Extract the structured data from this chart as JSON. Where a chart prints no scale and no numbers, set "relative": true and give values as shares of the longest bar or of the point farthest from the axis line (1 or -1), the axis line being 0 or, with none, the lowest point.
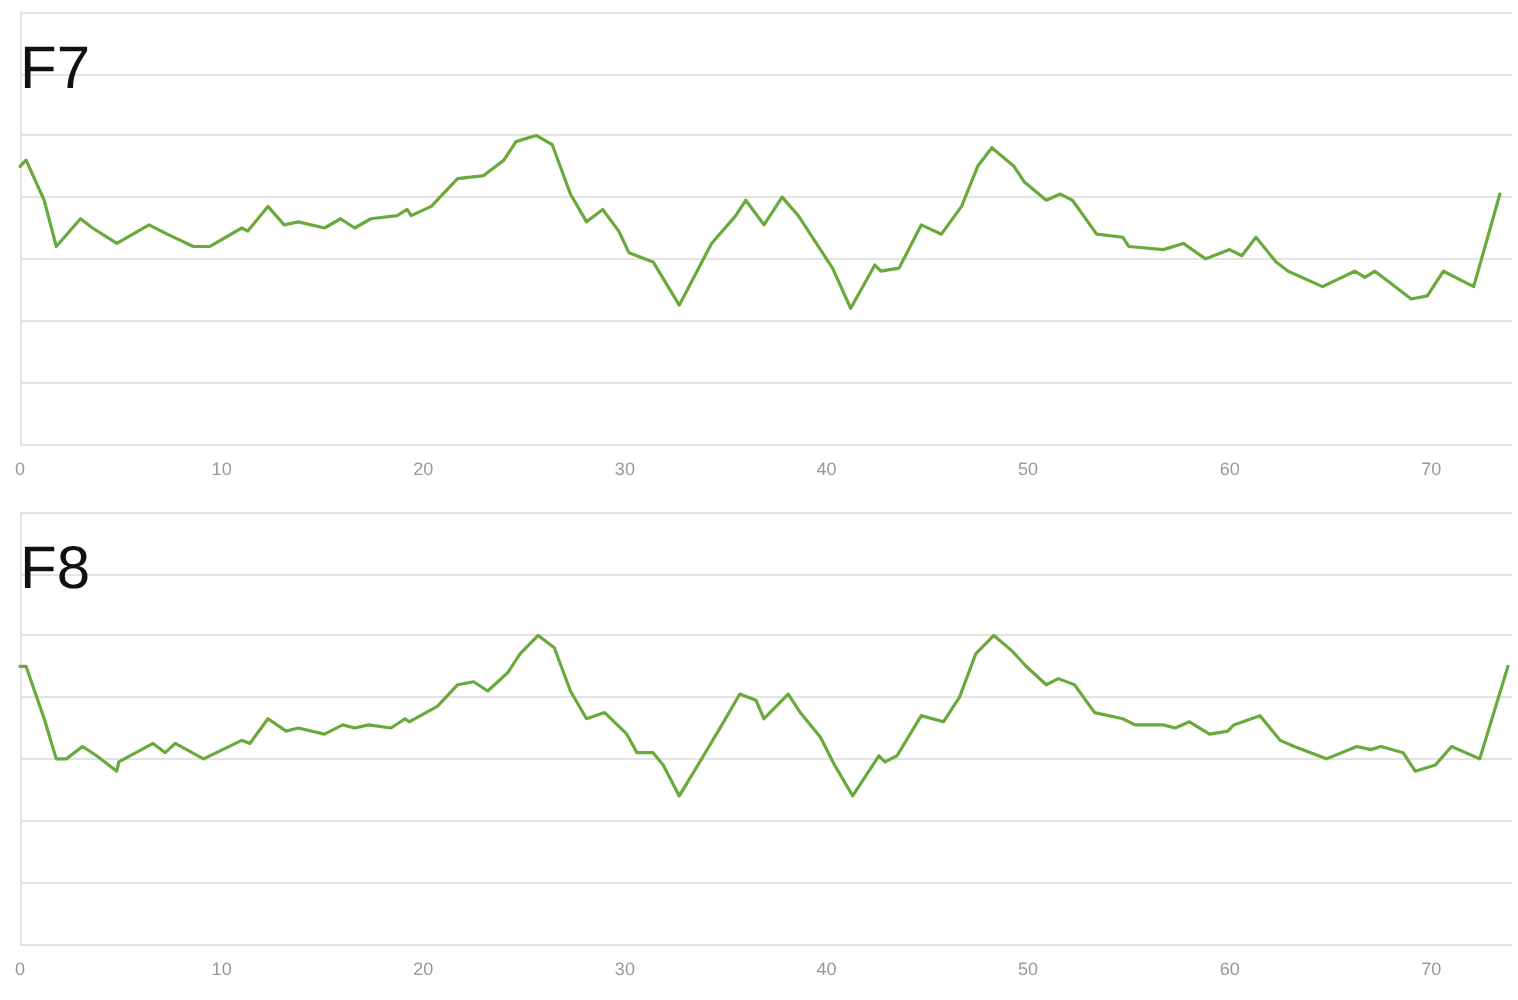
{
  "chart_data": [
    {
      "type": "line",
      "title": "F7",
      "relative": true,
      "xlim": [
        0,
        74
      ],
      "xticks": [
        0,
        10,
        20,
        30,
        40,
        50,
        60,
        70
      ],
      "grid": "y",
      "tick_labels": "x",
      "marker": "none",
      "line_style": "solid",
      "series": [
        {
          "color": "#6aa93c",
          "x": [
            0.0,
            0.3,
            1.2,
            1.8,
            3.0,
            3.6,
            4.8,
            6.4,
            7.3,
            8.6,
            9.4,
            11.0,
            11.3,
            12.3,
            13.1,
            13.8,
            15.1,
            15.9,
            16.6,
            17.4,
            18.7,
            19.2,
            19.4,
            20.4,
            21.7,
            23.0,
            24.0,
            24.6,
            25.6,
            26.4,
            27.3,
            28.1,
            28.9,
            29.7,
            30.2,
            31.4,
            32.7,
            34.3,
            35.5,
            36.0,
            36.9,
            37.8,
            38.6,
            40.3,
            41.2,
            42.4,
            42.7,
            43.6,
            44.7,
            45.7,
            46.7,
            47.5,
            48.2,
            49.3,
            49.8,
            50.9,
            51.6,
            52.2,
            53.4,
            54.7,
            55.0,
            56.7,
            57.7,
            58.8,
            60.0,
            60.6,
            61.3,
            62.3,
            62.9,
            64.6,
            66.2,
            66.7,
            67.2,
            68.0,
            69.0,
            69.8,
            70.6,
            72.1,
            73.4
          ],
          "values": [
            0.9,
            0.92,
            0.79,
            0.64,
            0.73,
            0.7,
            0.65,
            0.71,
            0.68,
            0.64,
            0.64,
            0.7,
            0.69,
            0.77,
            0.71,
            0.72,
            0.7,
            0.73,
            0.7,
            0.73,
            0.74,
            0.76,
            0.74,
            0.77,
            0.86,
            0.87,
            0.92,
            0.98,
            1.0,
            0.97,
            0.81,
            0.72,
            0.76,
            0.69,
            0.62,
            0.59,
            0.45,
            0.65,
            0.74,
            0.79,
            0.71,
            0.8,
            0.74,
            0.57,
            0.44,
            0.58,
            0.56,
            0.57,
            0.71,
            0.68,
            0.77,
            0.9,
            0.96,
            0.9,
            0.85,
            0.79,
            0.81,
            0.79,
            0.68,
            0.67,
            0.64,
            0.63,
            0.65,
            0.6,
            0.63,
            0.61,
            0.67,
            0.59,
            0.56,
            0.51,
            0.56,
            0.54,
            0.56,
            0.52,
            0.47,
            0.48,
            0.56,
            0.51,
            0.81
          ]
        }
      ]
    },
    {
      "type": "line",
      "title": "F8",
      "relative": true,
      "xlim": [
        0,
        74
      ],
      "xticks": [
        0,
        10,
        20,
        30,
        40,
        50,
        60,
        70
      ],
      "grid": "y",
      "tick_labels": "x",
      "marker": "none",
      "line_style": "solid",
      "series": [
        {
          "color": "#6aa93c",
          "x": [
            0.0,
            0.3,
            1.2,
            1.8,
            2.3,
            3.1,
            3.8,
            4.8,
            4.9,
            6.6,
            7.2,
            7.7,
            9.1,
            11.0,
            11.4,
            12.3,
            13.2,
            13.8,
            15.1,
            16.0,
            16.6,
            17.3,
            18.4,
            19.1,
            19.3,
            20.7,
            21.7,
            22.5,
            23.2,
            24.2,
            24.8,
            25.7,
            26.5,
            27.3,
            28.1,
            29.0,
            30.1,
            30.6,
            31.4,
            31.9,
            32.7,
            33.9,
            34.9,
            35.7,
            36.5,
            36.9,
            38.1,
            38.7,
            39.7,
            40.4,
            41.3,
            42.6,
            42.9,
            43.5,
            44.7,
            45.8,
            46.6,
            47.4,
            48.3,
            49.2,
            49.9,
            50.9,
            51.5,
            52.3,
            53.3,
            54.7,
            55.3,
            56.7,
            57.3,
            58.0,
            59.0,
            59.9,
            60.2,
            61.5,
            62.5,
            63.2,
            64.8,
            66.3,
            67.0,
            67.5,
            68.6,
            69.2,
            70.2,
            71.0,
            72.4,
            73.8
          ],
          "values": [
            0.9,
            0.9,
            0.73,
            0.6,
            0.6,
            0.64,
            0.61,
            0.56,
            0.59,
            0.65,
            0.62,
            0.65,
            0.6,
            0.66,
            0.65,
            0.73,
            0.69,
            0.7,
            0.68,
            0.71,
            0.7,
            0.71,
            0.7,
            0.73,
            0.72,
            0.77,
            0.84,
            0.85,
            0.82,
            0.88,
            0.94,
            1.0,
            0.96,
            0.82,
            0.73,
            0.75,
            0.68,
            0.62,
            0.62,
            0.58,
            0.48,
            0.61,
            0.72,
            0.81,
            0.79,
            0.73,
            0.81,
            0.75,
            0.67,
            0.58,
            0.48,
            0.61,
            0.59,
            0.61,
            0.74,
            0.72,
            0.8,
            0.94,
            1.0,
            0.95,
            0.9,
            0.84,
            0.86,
            0.84,
            0.75,
            0.73,
            0.71,
            0.71,
            0.7,
            0.72,
            0.68,
            0.69,
            0.71,
            0.74,
            0.66,
            0.64,
            0.6,
            0.64,
            0.63,
            0.64,
            0.62,
            0.56,
            0.58,
            0.64,
            0.6,
            0.9
          ]
        }
      ]
    }
  ]
}
